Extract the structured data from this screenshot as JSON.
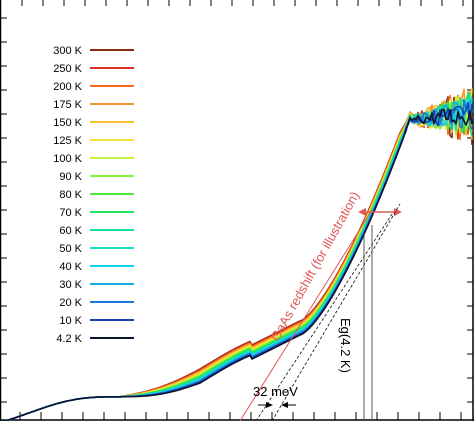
{
  "chart_data": {
    "type": "line",
    "title": "",
    "xlabel": "",
    "ylabel": "",
    "xlim": [
      0,
      1
    ],
    "ylim": [
      0,
      1
    ],
    "grid": false,
    "legend_position": "left",
    "series": [
      {
        "name": "300 K",
        "color": "#8b2b10"
      },
      {
        "name": "250 K",
        "color": "#e03020"
      },
      {
        "name": "200 K",
        "color": "#f26c1f"
      },
      {
        "name": "175 K",
        "color": "#f7982a"
      },
      {
        "name": "150 K",
        "color": "#fbc02d"
      },
      {
        "name": "125 K",
        "color": "#f3e538"
      },
      {
        "name": "100 K",
        "color": "#c7f03a"
      },
      {
        "name": "90 K",
        "color": "#8def3c"
      },
      {
        "name": "80 K",
        "color": "#4fe83d"
      },
      {
        "name": "70 K",
        "color": "#22e060"
      },
      {
        "name": "60 K",
        "color": "#19df9a"
      },
      {
        "name": "50 K",
        "color": "#16e1c8"
      },
      {
        "name": "40 K",
        "color": "#11d3ee"
      },
      {
        "name": "30 K",
        "color": "#14a9e8"
      },
      {
        "name": "20 K",
        "color": "#1d77d5"
      },
      {
        "name": "10 K",
        "color": "#1b3fb2"
      },
      {
        "name": "4.2 K",
        "color": "#0c1430"
      }
    ],
    "annotations": {
      "redshift_label": "GaAs redshift (for illustration)",
      "eg_label": "Eg(4.2 K)",
      "gap_label": "32 meV"
    }
  }
}
